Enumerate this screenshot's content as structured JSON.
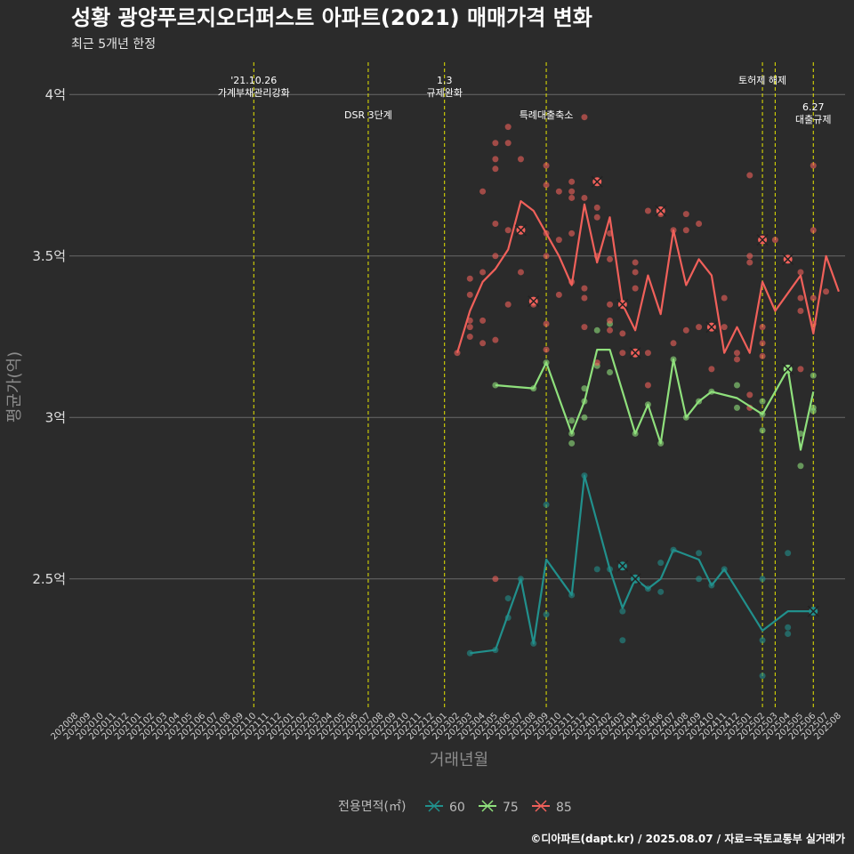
{
  "chart_data": {
    "type": "line",
    "title": "성황 광양푸르지오더퍼스트 아파트(2021) 매매가격 변화",
    "subtitle": "최근 5개년 한정",
    "xlabel": "거래년월",
    "ylabel": "평균가(억)",
    "caption": "©디아파트(dapt.kr) / 2025.08.07 / 자료=국토교통부 실거래가",
    "ylim": [
      2.1,
      4.1
    ],
    "grid": true,
    "legend_title": "전용면적(㎡)",
    "legend_position": "bottom",
    "colors": {
      "60": "#21908c",
      "75": "#8fe07c",
      "85": "#f0605a",
      "event_line": "#e6e600"
    },
    "y_ticks": [
      {
        "value": 2.5,
        "label": "2.5억"
      },
      {
        "value": 3.0,
        "label": "3억"
      },
      {
        "value": 3.5,
        "label": "3.5억"
      },
      {
        "value": 4.0,
        "label": "4억"
      }
    ],
    "x_ticks": [
      "202008",
      "202009",
      "202010",
      "202011",
      "202012",
      "202101",
      "202102",
      "202103",
      "202104",
      "202105",
      "202106",
      "202107",
      "202108",
      "202109",
      "202110",
      "202111",
      "202112",
      "202201",
      "202202",
      "202203",
      "202204",
      "202205",
      "202206",
      "202207",
      "202208",
      "202209",
      "202210",
      "202211",
      "202212",
      "202301",
      "202302",
      "202303",
      "202304",
      "202305",
      "202306",
      "202307",
      "202308",
      "202309",
      "202310",
      "202311",
      "202312",
      "202401",
      "202402",
      "202403",
      "202404",
      "202405",
      "202406",
      "202407",
      "202408",
      "202409",
      "202410",
      "202411",
      "202412",
      "202501",
      "202502",
      "202503",
      "202504",
      "202505",
      "202506",
      "202507",
      "202508"
    ],
    "events": [
      {
        "date": "202110",
        "label_lines": [
          "'21.10.26",
          "가계부채관리강화"
        ],
        "row": 0
      },
      {
        "date": "202207",
        "label_lines": [
          "DSR 3단계"
        ],
        "row": 1
      },
      {
        "date": "202301",
        "label_lines": [
          "1.3",
          "규제완화"
        ],
        "row": 0
      },
      {
        "date": "202309",
        "label_lines": [
          "특례대출축소"
        ],
        "row": 1
      },
      {
        "date": "202502",
        "label_lines": [
          "토허제 해제"
        ],
        "row": 0
      },
      {
        "date": "202503",
        "label_lines": [],
        "row": 0
      },
      {
        "date": "202506",
        "label_lines": [
          "6.27",
          "대출규제"
        ],
        "row": 2
      }
    ],
    "series": [
      {
        "name": "60",
        "x": [
          "202303",
          "202305",
          "202307",
          "202308",
          "202309",
          "202311",
          "202312",
          "202402",
          "202403",
          "202404",
          "202405",
          "202406",
          "202407",
          "202409",
          "202410",
          "202411",
          "202502",
          "202504",
          "202506"
        ],
        "values": [
          2.27,
          2.28,
          2.5,
          2.3,
          2.56,
          2.45,
          2.82,
          2.53,
          2.41,
          2.5,
          2.47,
          2.5,
          2.59,
          2.56,
          2.48,
          2.53,
          2.34,
          2.4,
          2.4
        ],
        "points": [
          [
            2.27,
            "202303"
          ],
          [
            2.28,
            "202305"
          ],
          [
            2.38,
            "202306"
          ],
          [
            2.44,
            "202306"
          ],
          [
            2.5,
            "202307"
          ],
          [
            2.3,
            "202308"
          ],
          [
            2.39,
            "202309"
          ],
          [
            2.73,
            "202309"
          ],
          [
            2.45,
            "202311"
          ],
          [
            2.82,
            "202312"
          ],
          [
            2.53,
            "202401"
          ],
          [
            2.53,
            "202402"
          ],
          [
            2.54,
            "202403"
          ],
          [
            2.4,
            "202403"
          ],
          [
            2.31,
            "202403"
          ],
          [
            2.5,
            "202404"
          ],
          [
            2.47,
            "202405"
          ],
          [
            2.46,
            "202406"
          ],
          [
            2.55,
            "202406"
          ],
          [
            2.59,
            "202407"
          ],
          [
            2.58,
            "202409"
          ],
          [
            2.5,
            "202409"
          ],
          [
            2.48,
            "202410"
          ],
          [
            2.53,
            "202411"
          ],
          [
            2.31,
            "202502"
          ],
          [
            2.2,
            "202502"
          ],
          [
            2.5,
            "202502"
          ],
          [
            2.35,
            "202504"
          ],
          [
            2.33,
            "202504"
          ],
          [
            2.58,
            "202504"
          ],
          [
            2.4,
            "202506"
          ]
        ],
        "highlights": [
          [
            "202403",
            2.54
          ],
          [
            "202404",
            2.5
          ],
          [
            "202506",
            2.4
          ]
        ]
      },
      {
        "name": "75",
        "x": [
          "202305",
          "202308",
          "202309",
          "202311",
          "202312",
          "202401",
          "202402",
          "202404",
          "202405",
          "202406",
          "202407",
          "202408",
          "202409",
          "202410",
          "202412",
          "202502",
          "202504",
          "202505",
          "202506"
        ],
        "values": [
          3.1,
          3.09,
          3.17,
          2.95,
          3.05,
          3.21,
          3.21,
          2.95,
          3.04,
          2.92,
          3.18,
          3.0,
          3.05,
          3.08,
          3.06,
          3.01,
          3.15,
          2.9,
          3.08
        ],
        "points": [
          [
            3.1,
            "202305"
          ],
          [
            3.09,
            "202308"
          ],
          [
            3.17,
            "202309"
          ],
          [
            2.95,
            "202311"
          ],
          [
            2.99,
            "202311"
          ],
          [
            2.92,
            "202311"
          ],
          [
            3.0,
            "202312"
          ],
          [
            3.09,
            "202312"
          ],
          [
            3.05,
            "202312"
          ],
          [
            3.27,
            "202401"
          ],
          [
            3.16,
            "202401"
          ],
          [
            3.29,
            "202402"
          ],
          [
            3.14,
            "202402"
          ],
          [
            2.95,
            "202404"
          ],
          [
            3.04,
            "202405"
          ],
          [
            2.92,
            "202406"
          ],
          [
            3.18,
            "202407"
          ],
          [
            3.0,
            "202408"
          ],
          [
            3.05,
            "202409"
          ],
          [
            3.08,
            "202410"
          ],
          [
            3.03,
            "202412"
          ],
          [
            3.1,
            "202412"
          ],
          [
            3.01,
            "202502"
          ],
          [
            2.96,
            "202502"
          ],
          [
            3.05,
            "202502"
          ],
          [
            3.15,
            "202504"
          ],
          [
            2.95,
            "202505"
          ],
          [
            2.85,
            "202505"
          ],
          [
            3.13,
            "202506"
          ],
          [
            3.02,
            "202506"
          ],
          [
            3.03,
            "202506"
          ]
        ],
        "highlights": [
          [
            "202504",
            3.15
          ]
        ]
      },
      {
        "name": "85",
        "x": [
          "202302",
          "202303",
          "202304",
          "202305",
          "202306",
          "202307",
          "202308",
          "202309",
          "202310",
          "202311",
          "202312",
          "202401",
          "202402",
          "202403",
          "202404",
          "202405",
          "202406",
          "202407",
          "202408",
          "202409",
          "202410",
          "202411",
          "202412",
          "202501",
          "202502",
          "202503",
          "202505",
          "202506",
          "202507",
          "202508"
        ],
        "values": [
          3.2,
          3.33,
          3.42,
          3.46,
          3.52,
          3.67,
          3.64,
          3.57,
          3.5,
          3.41,
          3.66,
          3.48,
          3.62,
          3.35,
          3.27,
          3.44,
          3.32,
          3.58,
          3.41,
          3.49,
          3.44,
          3.2,
          3.28,
          3.2,
          3.42,
          3.33,
          3.44,
          3.26,
          3.5,
          3.39
        ],
        "points": [
          [
            3.2,
            "202302"
          ],
          [
            3.25,
            "202303"
          ],
          [
            3.28,
            "202303"
          ],
          [
            3.3,
            "202303"
          ],
          [
            3.38,
            "202303"
          ],
          [
            3.43,
            "202303"
          ],
          [
            3.45,
            "202304"
          ],
          [
            3.23,
            "202304"
          ],
          [
            3.3,
            "202304"
          ],
          [
            3.7,
            "202304"
          ],
          [
            3.6,
            "202305"
          ],
          [
            3.85,
            "202305"
          ],
          [
            3.8,
            "202305"
          ],
          [
            3.77,
            "202305"
          ],
          [
            3.5,
            "202305"
          ],
          [
            3.24,
            "202305"
          ],
          [
            2.5,
            "202305"
          ],
          [
            3.58,
            "202306"
          ],
          [
            3.85,
            "202306"
          ],
          [
            3.9,
            "202306"
          ],
          [
            3.35,
            "202306"
          ],
          [
            3.8,
            "202307"
          ],
          [
            3.45,
            "202307"
          ],
          [
            3.35,
            "202308"
          ],
          [
            3.72,
            "202309"
          ],
          [
            3.78,
            "202309"
          ],
          [
            3.57,
            "202309"
          ],
          [
            3.29,
            "202309"
          ],
          [
            3.21,
            "202309"
          ],
          [
            3.5,
            "202309"
          ],
          [
            3.7,
            "202310"
          ],
          [
            3.55,
            "202310"
          ],
          [
            3.38,
            "202310"
          ],
          [
            3.68,
            "202311"
          ],
          [
            3.73,
            "202311"
          ],
          [
            3.7,
            "202311"
          ],
          [
            3.57,
            "202311"
          ],
          [
            3.42,
            "202311"
          ],
          [
            3.93,
            "202312"
          ],
          [
            3.68,
            "202312"
          ],
          [
            3.4,
            "202312"
          ],
          [
            3.37,
            "202312"
          ],
          [
            3.28,
            "202312"
          ],
          [
            3.73,
            "202401"
          ],
          [
            3.65,
            "202401"
          ],
          [
            3.62,
            "202401"
          ],
          [
            3.5,
            "202401"
          ],
          [
            3.17,
            "202401"
          ],
          [
            3.57,
            "202402"
          ],
          [
            3.49,
            "202402"
          ],
          [
            3.35,
            "202402"
          ],
          [
            3.3,
            "202402"
          ],
          [
            3.27,
            "202402"
          ],
          [
            3.2,
            "202403"
          ],
          [
            3.26,
            "202403"
          ],
          [
            3.45,
            "202404"
          ],
          [
            3.48,
            "202404"
          ],
          [
            3.4,
            "202404"
          ],
          [
            3.64,
            "202405"
          ],
          [
            3.2,
            "202405"
          ],
          [
            3.1,
            "202405"
          ],
          [
            3.63,
            "202406"
          ],
          [
            3.58,
            "202407"
          ],
          [
            3.23,
            "202407"
          ],
          [
            3.63,
            "202408"
          ],
          [
            3.58,
            "202408"
          ],
          [
            3.27,
            "202408"
          ],
          [
            3.6,
            "202409"
          ],
          [
            3.28,
            "202409"
          ],
          [
            3.15,
            "202410"
          ],
          [
            3.28,
            "202411"
          ],
          [
            3.37,
            "202411"
          ],
          [
            3.2,
            "202412"
          ],
          [
            3.18,
            "202412"
          ],
          [
            3.75,
            "202501"
          ],
          [
            3.5,
            "202501"
          ],
          [
            3.48,
            "202501"
          ],
          [
            3.07,
            "202501"
          ],
          [
            3.03,
            "202501"
          ],
          [
            3.28,
            "202502"
          ],
          [
            3.23,
            "202502"
          ],
          [
            3.19,
            "202502"
          ],
          [
            3.55,
            "202503"
          ],
          [
            3.45,
            "202505"
          ],
          [
            3.37,
            "202505"
          ],
          [
            3.33,
            "202505"
          ],
          [
            3.15,
            "202505"
          ],
          [
            3.78,
            "202506"
          ],
          [
            3.58,
            "202506"
          ],
          [
            3.37,
            "202506"
          ],
          [
            3.29,
            "202506"
          ],
          [
            3.39,
            "202507"
          ]
        ],
        "highlights": [
          [
            "202307",
            3.58
          ],
          [
            "202308",
            3.36
          ],
          [
            "202401",
            3.73
          ],
          [
            "202403",
            3.35
          ],
          [
            "202404",
            3.2
          ],
          [
            "202406",
            3.64
          ],
          [
            "202410",
            3.28
          ],
          [
            "202502",
            3.55
          ],
          [
            "202504",
            3.49
          ]
        ]
      }
    ]
  }
}
